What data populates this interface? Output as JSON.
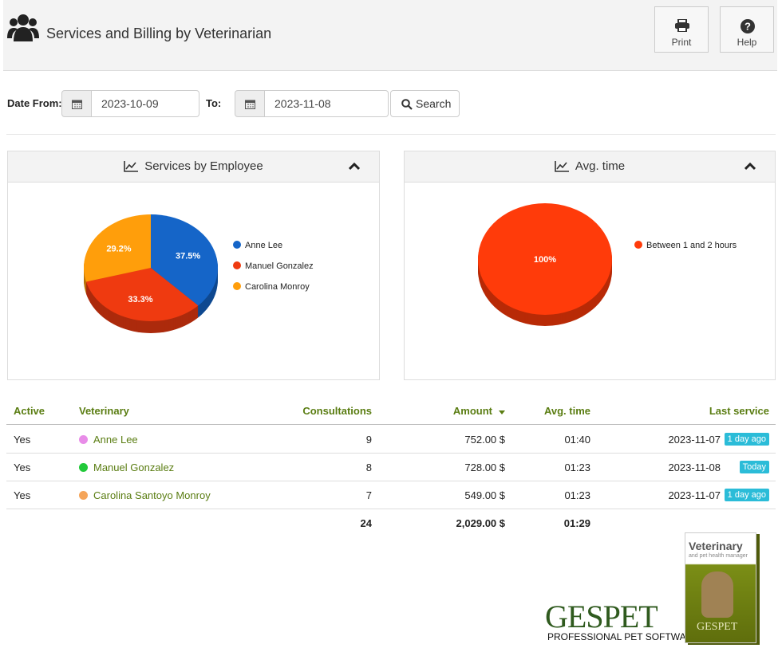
{
  "header": {
    "title": "Services and Billing by Veterinarian",
    "print": "Print",
    "help": "Help"
  },
  "filters": {
    "date_from_label": "Date From:",
    "date_from": "2023-10-09",
    "to_label": "To:",
    "date_to": "2023-11-08",
    "search": "Search"
  },
  "chart_data": [
    {
      "type": "pie",
      "title": "Services by Employee",
      "categories": [
        "Anne Lee",
        "Manuel Gonzalez",
        "Carolina Monroy"
      ],
      "values": [
        37.5,
        33.3,
        29.2
      ],
      "value_labels": [
        "37.5%",
        "33.3%",
        "29.2%"
      ],
      "colors": [
        "#1565c8",
        "#ef3a10",
        "#ff9e0b"
      ]
    },
    {
      "type": "pie",
      "title": "Avg. time",
      "categories": [
        "Between 1 and 2 hours"
      ],
      "values": [
        100
      ],
      "value_labels": [
        "100%"
      ],
      "colors": [
        "#ff3b0a"
      ]
    }
  ],
  "table": {
    "header": [
      "Active",
      "Veterinary",
      "Consultations",
      "Amount",
      "Avg. time",
      "Last service"
    ],
    "dot_colors": [
      "#e88ce8",
      "#22c93a",
      "#f5a55a"
    ],
    "rows": [
      [
        "Yes",
        "Anne Lee",
        "9",
        "752.00 $",
        "01:40",
        "2023-11-07",
        "1 day ago"
      ],
      [
        "Yes",
        "Manuel Gonzalez",
        "8",
        "728.00 $",
        "01:23",
        "2023-11-08",
        "Today"
      ],
      [
        "Yes",
        "Carolina Santoyo Monroy",
        "7",
        "549.00 $",
        "01:23",
        "2023-11-07",
        "1 day ago"
      ]
    ],
    "totals": [
      "24",
      "2,029.00 $",
      "01:29"
    ]
  },
  "branding": {
    "logo": "GESPET",
    "tagline": "PROFESSIONAL PET SOFTWARE",
    "box_title": "Veterinary",
    "box_subtitle": "and pet health manager",
    "box_logo": "GESPET"
  }
}
